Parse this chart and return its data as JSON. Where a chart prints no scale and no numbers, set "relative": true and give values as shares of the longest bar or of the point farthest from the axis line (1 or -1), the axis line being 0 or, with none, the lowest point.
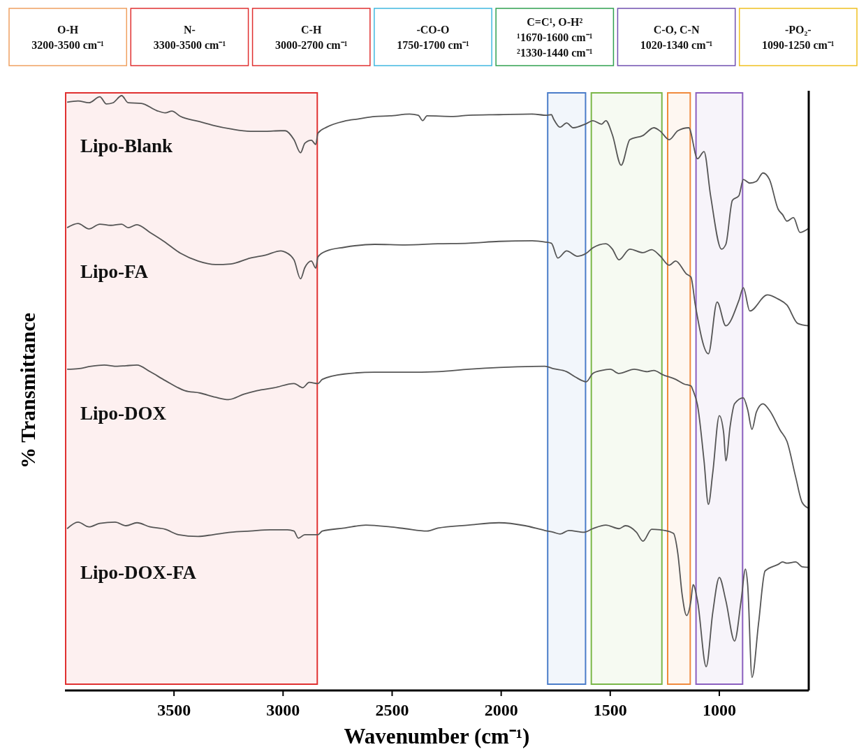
{
  "chart_data": {
    "type": "line",
    "relative": true,
    "xlabel": "Wavenumber (cm⁻¹)",
    "ylabel": "% Transmittance",
    "xlim": [
      4000,
      590
    ],
    "xticks": [
      3500,
      3000,
      2500,
      2000,
      1500,
      1000
    ],
    "tick_labels": "x",
    "annotations": [
      "O-H\n3200-3500 cm⁻¹",
      "N-\n3300-3500 cm⁻¹",
      "C-H\n3000-2700 cm⁻¹",
      "-CO-O\n1750-1700 cm⁻¹",
      "C=C¹, O-H²\n¹1670-1600 cm⁻¹\n²1330-1440 cm⁻¹",
      "C-O, C-N\n1020-1340 cm⁻¹",
      "-PO₂-\n1090-1250 cm⁻¹"
    ],
    "bands": [
      {
        "axis": "x",
        "from": 4000,
        "to": 2840,
        "color": "#e03030"
      },
      {
        "axis": "x",
        "from": 1790,
        "to": 1610,
        "color": "#4a7cc9"
      },
      {
        "axis": "x",
        "from": 1590,
        "to": 1260,
        "color": "#7ab648"
      },
      {
        "axis": "x",
        "from": 1240,
        "to": 1130,
        "color": "#f08a3c"
      },
      {
        "axis": "x",
        "from": 1110,
        "to": 890,
        "color": "#8b5fbf"
      }
    ],
    "series": [
      {
        "name": "Lipo-Blank",
        "color": "#555555",
        "x": [
          3990,
          3940,
          3890,
          3840,
          3810,
          3780,
          3740,
          3710,
          3650,
          3580,
          3540,
          3510,
          3470,
          3390,
          3320,
          3240,
          3150,
          3080,
          3010,
          2990,
          2950,
          2920,
          2900,
          2870,
          2850,
          2840,
          2800,
          2720,
          2650,
          2580,
          2510,
          2420,
          2380,
          2360,
          2340,
          2220,
          2150,
          2010,
          1860,
          1790,
          1770,
          1760,
          1730,
          1700,
          1670,
          1610,
          1580,
          1540,
          1520,
          1490,
          1450,
          1410,
          1350,
          1300,
          1270,
          1230,
          1190,
          1140,
          1100,
          1070,
          1040,
          990,
          970,
          940,
          910,
          890,
          860,
          830,
          800,
          770,
          730,
          710,
          690,
          660,
          630,
          590
        ],
        "values": [
          0.989,
          0.991,
          0.988,
          0.998,
          0.986,
          0.988,
          1.0,
          0.988,
          0.987,
          0.975,
          0.971,
          0.974,
          0.965,
          0.957,
          0.95,
          0.944,
          0.94,
          0.94,
          0.941,
          0.941,
          0.926,
          0.904,
          0.92,
          0.925,
          0.918,
          0.937,
          0.947,
          0.957,
          0.961,
          0.965,
          0.966,
          0.969,
          0.967,
          0.958,
          0.966,
          0.965,
          0.967,
          0.968,
          0.969,
          0.967,
          0.968,
          0.961,
          0.947,
          0.954,
          0.946,
          0.953,
          0.958,
          0.952,
          0.958,
          0.934,
          0.883,
          0.926,
          0.933,
          0.946,
          0.94,
          0.926,
          0.941,
          0.946,
          0.894,
          0.906,
          0.832,
          0.742,
          0.75,
          0.824,
          0.832,
          0.859,
          0.853,
          0.856,
          0.87,
          0.859,
          0.809,
          0.8,
          0.789,
          0.795,
          0.77,
          0.777
        ]
      },
      {
        "name": "Lipo-FA",
        "color": "#555555",
        "x": [
          3990,
          3940,
          3890,
          3840,
          3790,
          3740,
          3710,
          3670,
          3610,
          3550,
          3470,
          3390,
          3310,
          3240,
          3150,
          3080,
          3010,
          2990,
          2950,
          2920,
          2900,
          2870,
          2850,
          2840,
          2800,
          2720,
          2580,
          2440,
          2290,
          2150,
          2010,
          1860,
          1800,
          1770,
          1740,
          1700,
          1650,
          1610,
          1580,
          1520,
          1490,
          1460,
          1410,
          1350,
          1310,
          1270,
          1230,
          1200,
          1150,
          1130,
          1110,
          1050,
          1010,
          970,
          910,
          890,
          860,
          780,
          730,
          690,
          640,
          590
        ],
        "values": [
          0.778,
          0.785,
          0.776,
          0.784,
          0.782,
          0.784,
          0.778,
          0.783,
          0.77,
          0.756,
          0.735,
          0.722,
          0.716,
          0.717,
          0.727,
          0.732,
          0.739,
          0.737,
          0.724,
          0.692,
          0.711,
          0.722,
          0.71,
          0.729,
          0.739,
          0.745,
          0.75,
          0.749,
          0.751,
          0.752,
          0.755,
          0.756,
          0.754,
          0.752,
          0.727,
          0.739,
          0.73,
          0.735,
          0.744,
          0.751,
          0.742,
          0.724,
          0.742,
          0.736,
          0.741,
          0.73,
          0.715,
          0.722,
          0.7,
          0.695,
          0.648,
          0.566,
          0.653,
          0.613,
          0.656,
          0.677,
          0.638,
          0.665,
          0.658,
          0.648,
          0.617,
          0.613
        ]
      },
      {
        "name": "Lipo-DOX",
        "color": "#555555",
        "x": [
          3990,
          3940,
          3880,
          3820,
          3760,
          3720,
          3670,
          3610,
          3540,
          3450,
          3380,
          3310,
          3250,
          3180,
          3120,
          3040,
          2950,
          2910,
          2880,
          2840,
          2820,
          2720,
          2580,
          2440,
          2290,
          2150,
          2010,
          1800,
          1760,
          1700,
          1660,
          1610,
          1580,
          1540,
          1500,
          1460,
          1390,
          1330,
          1300,
          1260,
          1200,
          1160,
          1130,
          1120,
          1100,
          1070,
          1050,
          1030,
          1000,
          980,
          970,
          950,
          930,
          890,
          870,
          850,
          830,
          800,
          770,
          720,
          690,
          650,
          620,
          590
        ],
        "values": [
          0.54,
          0.541,
          0.545,
          0.547,
          0.545,
          0.546,
          0.547,
          0.536,
          0.521,
          0.504,
          0.5,
          0.493,
          0.489,
          0.498,
          0.504,
          0.509,
          0.516,
          0.509,
          0.518,
          0.516,
          0.523,
          0.532,
          0.535,
          0.535,
          0.536,
          0.54,
          0.543,
          0.545,
          0.541,
          0.536,
          0.527,
          0.519,
          0.533,
          0.538,
          0.54,
          0.533,
          0.54,
          0.536,
          0.538,
          0.531,
          0.523,
          0.515,
          0.512,
          0.504,
          0.48,
          0.386,
          0.313,
          0.366,
          0.462,
          0.433,
          0.386,
          0.445,
          0.482,
          0.492,
          0.472,
          0.439,
          0.468,
          0.482,
          0.471,
          0.437,
          0.419,
          0.359,
          0.316,
          0.306
        ]
      },
      {
        "name": "Lipo-DOX-FA",
        "color": "#555555",
        "x": [
          3990,
          3940,
          3890,
          3840,
          3770,
          3720,
          3670,
          3610,
          3540,
          3480,
          3390,
          3320,
          3240,
          3150,
          3060,
          2980,
          2950,
          2930,
          2900,
          2840,
          2820,
          2720,
          2620,
          2510,
          2440,
          2340,
          2290,
          2150,
          2010,
          1890,
          1800,
          1760,
          1730,
          1690,
          1620,
          1580,
          1520,
          1460,
          1430,
          1380,
          1350,
          1310,
          1270,
          1250,
          1210,
          1190,
          1170,
          1150,
          1130,
          1120,
          1100,
          1060,
          1030,
          1000,
          970,
          930,
          900,
          880,
          870,
          850,
          820,
          790,
          730,
          710,
          690,
          650,
          620,
          590
        ],
        "values": [
          0.272,
          0.283,
          0.275,
          0.281,
          0.283,
          0.277,
          0.282,
          0.275,
          0.271,
          0.262,
          0.259,
          0.262,
          0.266,
          0.268,
          0.27,
          0.27,
          0.268,
          0.256,
          0.262,
          0.262,
          0.268,
          0.273,
          0.278,
          0.275,
          0.272,
          0.268,
          0.273,
          0.278,
          0.282,
          0.277,
          0.269,
          0.266,
          0.263,
          0.269,
          0.266,
          0.272,
          0.278,
          0.272,
          0.277,
          0.266,
          0.251,
          0.271,
          0.27,
          0.269,
          0.264,
          0.23,
          0.16,
          0.126,
          0.151,
          0.178,
          0.151,
          0.04,
          0.131,
          0.19,
          0.151,
          0.083,
          0.151,
          0.204,
          0.178,
          0.022,
          0.113,
          0.201,
          0.212,
          0.216,
          0.214,
          0.216,
          0.208,
          0.207
        ]
      }
    ]
  }
}
